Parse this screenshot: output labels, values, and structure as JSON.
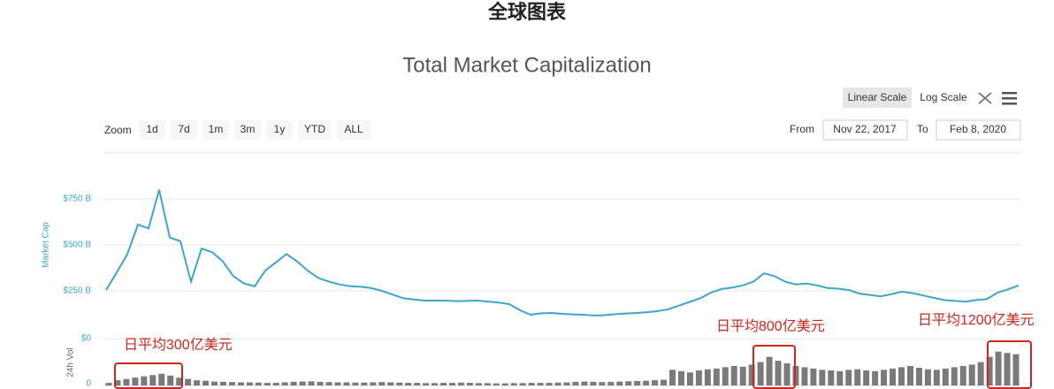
{
  "header": {
    "title": "全球图表"
  },
  "controls": {
    "scale_buttons": [
      "Linear Scale",
      "Log Scale"
    ],
    "zoom_label": "Zoom",
    "zoom_buttons": [
      "1d",
      "7d",
      "1m",
      "3m",
      "1y",
      "YTD",
      "ALL"
    ],
    "from_label": "From",
    "from_date": "Nov 22, 2017",
    "to_label": "To",
    "to_date": "Feb 8, 2020"
  },
  "annotations": [
    "日平均300亿美元",
    "日平均800亿美元",
    "日平均1200亿美元"
  ],
  "chart_data": [
    {
      "type": "line",
      "title": "Total Market Capitalization",
      "y_label": "Market Cap",
      "color": "#3ea6cc",
      "grid": true,
      "ylim": [
        0,
        1000
      ],
      "yticks": [
        {
          "value": 250,
          "label": "$250 B"
        },
        {
          "value": 500,
          "label": "$500 B"
        },
        {
          "value": 750,
          "label": "$750 B"
        }
      ],
      "values": [
        255,
        350,
        450,
        610,
        590,
        800,
        540,
        520,
        300,
        480,
        460,
        410,
        330,
        290,
        275,
        360,
        405,
        450,
        410,
        360,
        320,
        300,
        285,
        275,
        272,
        265,
        250,
        230,
        210,
        203,
        197,
        197,
        197,
        194,
        195,
        197,
        192,
        186,
        178,
        145,
        120,
        128,
        130,
        125,
        122,
        120,
        116,
        118,
        123,
        127,
        130,
        134,
        140,
        150,
        170,
        190,
        210,
        240,
        260,
        268,
        280,
        300,
        345,
        330,
        300,
        285,
        290,
        280,
        265,
        262,
        255,
        235,
        228,
        220,
        232,
        245,
        238,
        225,
        212,
        200,
        195,
        192,
        200,
        205,
        240,
        258,
        280
      ]
    },
    {
      "type": "bar",
      "y_label": "24h Vol",
      "y_top_label": "$0",
      "color": "#7a7a7a",
      "ylim": [
        0,
        180
      ],
      "yticks": [
        0
      ],
      "values": [
        10,
        20,
        25,
        30,
        35,
        40,
        45,
        38,
        30,
        25,
        20,
        18,
        15,
        14,
        13,
        12,
        12,
        11,
        10,
        10,
        12,
        14,
        15,
        16,
        14,
        13,
        12,
        12,
        11,
        11,
        12,
        13,
        12,
        11,
        10,
        10,
        9,
        9,
        10,
        10,
        11,
        10,
        9,
        9,
        8,
        8,
        9,
        9,
        10,
        10,
        10,
        11,
        12,
        14,
        15,
        14,
        13,
        14,
        15,
        16,
        17,
        18,
        20,
        22,
        60,
        55,
        50,
        58,
        62,
        65,
        70,
        75,
        72,
        80,
        90,
        110,
        95,
        85,
        75,
        70,
        65,
        60,
        58,
        55,
        60,
        62,
        58,
        55,
        60,
        65,
        70,
        75,
        68,
        62,
        60,
        65,
        70,
        75,
        80,
        90,
        110,
        130,
        125,
        120
      ]
    }
  ]
}
